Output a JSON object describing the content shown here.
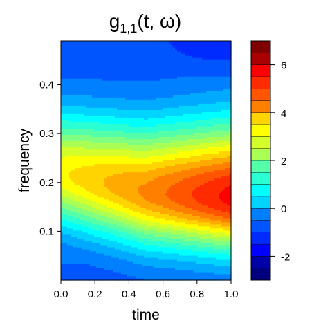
{
  "chart_data": {
    "type": "heatmap",
    "title": {
      "main": "g",
      "subscript": "1,1",
      "args": "(t, ω)"
    },
    "xlabel": "time",
    "ylabel": "frequency",
    "xlim": [
      0.0,
      1.0
    ],
    "ylim": [
      0.0,
      0.49
    ],
    "x_ticks": [
      0.0,
      0.2,
      0.4,
      0.6,
      0.8,
      1.0
    ],
    "x_tick_labels": [
      "0.0",
      "0.2",
      "0.4",
      "0.6",
      "0.8",
      "1.0"
    ],
    "y_ticks": [
      0.1,
      0.2,
      0.3,
      0.4
    ],
    "y_tick_labels": [
      "0.1",
      "0.2",
      "0.3",
      "0.4"
    ],
    "colorbar": {
      "range": [
        -3,
        7
      ],
      "levels": [
        -3,
        -2.5,
        -2,
        -1.5,
        -1,
        -0.5,
        0,
        0.5,
        1,
        1.5,
        2,
        2.5,
        3,
        3.5,
        4,
        4.5,
        5,
        5.5,
        6,
        6.5,
        7
      ],
      "ticks": [
        -2,
        0,
        2,
        4,
        6
      ],
      "tick_labels": [
        "-2",
        "0",
        "2",
        "4",
        "6"
      ],
      "colors": [
        "#00007F",
        "#0000A9",
        "#0000D4",
        "#0000FF",
        "#002BFF",
        "#0055FF",
        "#0080FF",
        "#00AAFF",
        "#00D4FF",
        "#00FFFF",
        "#2BFFD4",
        "#55FFAA",
        "#80FF80",
        "#AAFF55",
        "#D4FF2B",
        "#FFFF00",
        "#FFD400",
        "#FFAA00",
        "#FF8000",
        "#FF5500",
        "#FF2B00",
        "#FF0000",
        "#D40000",
        "#AA0000",
        "#7F0000"
      ]
    },
    "surface": {
      "description_points": [
        {
          "time": 0.0,
          "peak_frequency": 0.22,
          "peak_value": 3.3
        },
        {
          "time": 0.5,
          "peak_frequency": 0.18,
          "peak_value": 4.3
        },
        {
          "time": 1.0,
          "peak_frequency": 0.17,
          "peak_value": 5.6
        }
      ],
      "background_low": -0.9,
      "top_right_value": -1.4
    }
  }
}
